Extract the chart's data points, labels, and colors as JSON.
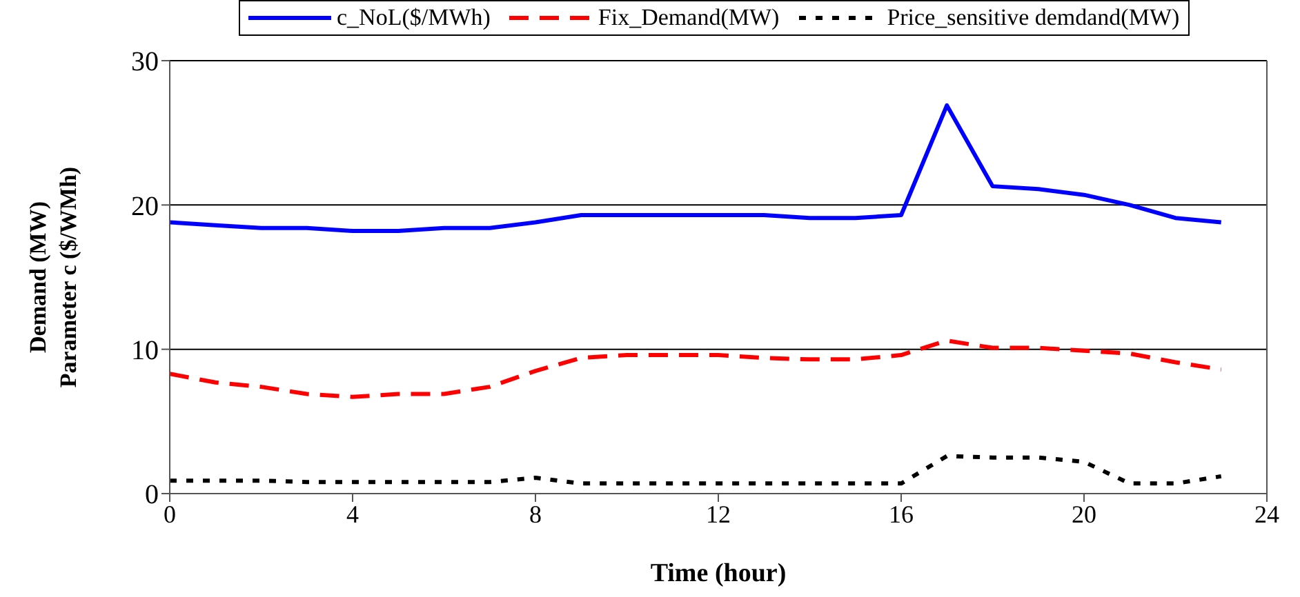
{
  "chart_data": {
    "type": "line",
    "xlabel": "Time (hour)",
    "ylabel": "Demand (MW)\nParameter c ($/WMh)",
    "x": [
      0,
      1,
      2,
      3,
      4,
      5,
      6,
      7,
      8,
      9,
      10,
      11,
      12,
      13,
      14,
      15,
      16,
      17,
      18,
      19,
      20,
      21,
      22,
      23
    ],
    "series": [
      {
        "name": "c_NoL($/MWh)",
        "color": "#0000ff",
        "line_style": "solid",
        "values": [
          18.8,
          18.6,
          18.4,
          18.4,
          18.2,
          18.2,
          18.4,
          18.4,
          18.8,
          19.3,
          19.3,
          19.3,
          19.3,
          19.3,
          19.1,
          19.1,
          19.3,
          26.9,
          21.3,
          21.1,
          20.7,
          20.0,
          19.1,
          18.8
        ]
      },
      {
        "name": "Fix_Demand(MW)",
        "color": "#ff0000",
        "line_style": "dashed",
        "values": [
          8.3,
          7.7,
          7.4,
          6.9,
          6.7,
          6.9,
          6.9,
          7.4,
          8.5,
          9.4,
          9.6,
          9.6,
          9.6,
          9.4,
          9.3,
          9.3,
          9.6,
          10.6,
          10.1,
          10.1,
          9.9,
          9.7,
          9.1,
          8.6
        ]
      },
      {
        "name": "Price_sensitive demdand(MW)",
        "color": "#000000",
        "line_style": "dotted",
        "values": [
          0.9,
          0.9,
          0.9,
          0.8,
          0.8,
          0.8,
          0.8,
          0.8,
          1.1,
          0.7,
          0.7,
          0.7,
          0.7,
          0.7,
          0.7,
          0.7,
          0.7,
          2.6,
          2.5,
          2.5,
          2.2,
          0.7,
          0.7,
          1.2
        ]
      }
    ],
    "xlim": [
      0,
      24
    ],
    "xticks": [
      0,
      4,
      8,
      12,
      16,
      20,
      24
    ],
    "ylim": [
      0,
      30
    ],
    "yticks": [
      0,
      10,
      20,
      30
    ],
    "grid": "y",
    "legend": "top",
    "marker": "none"
  }
}
